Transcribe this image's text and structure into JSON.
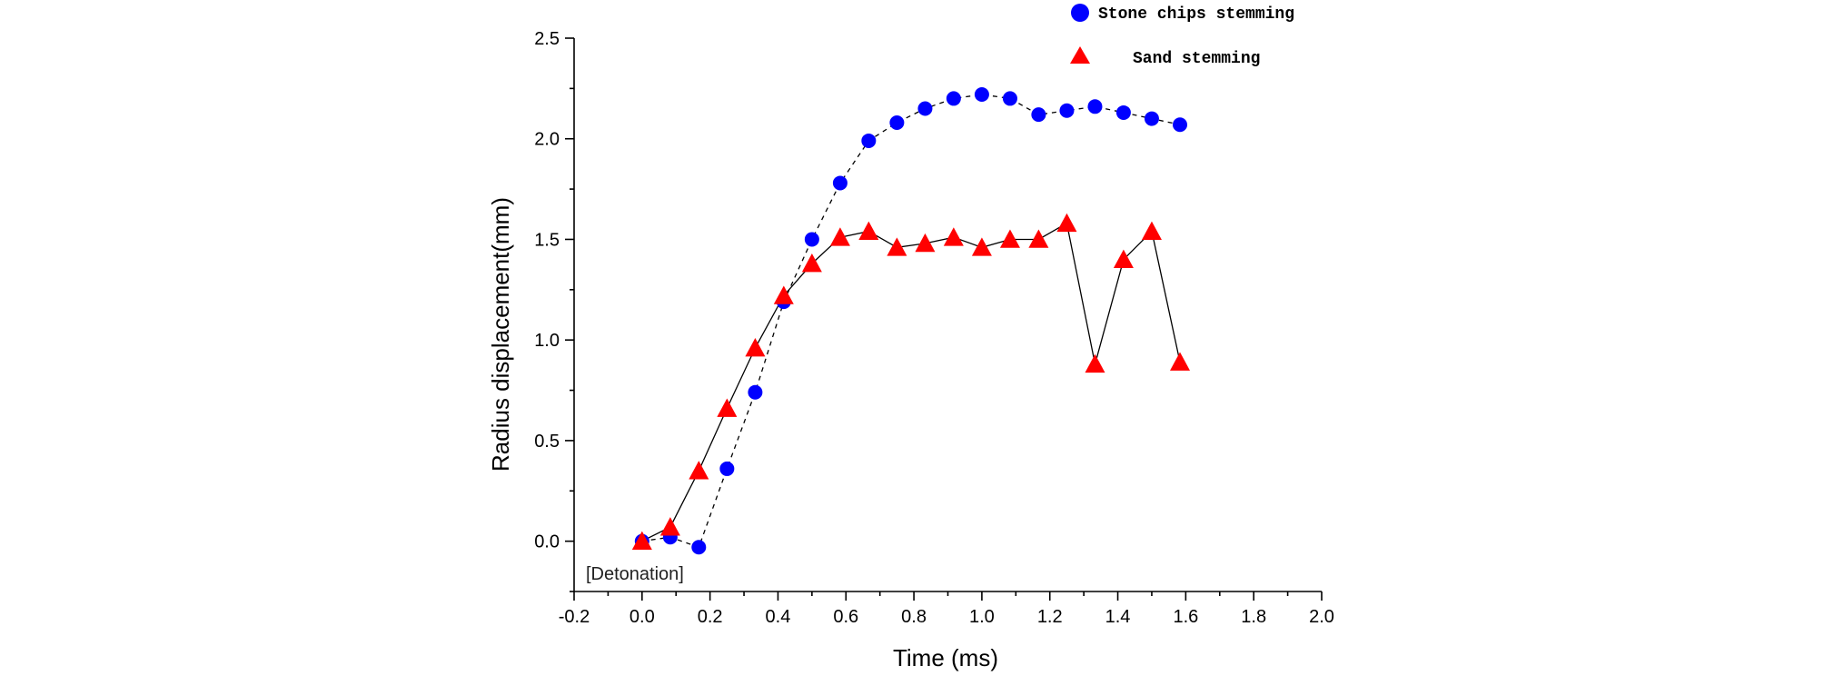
{
  "chart_data": {
    "type": "scatter",
    "xlabel": "Time (ms)",
    "ylabel": "Radius displacement(mm)",
    "xlim": [
      -0.2,
      2.0
    ],
    "ylim": [
      -0.25,
      2.5
    ],
    "x_ticks": [
      -0.2,
      0.0,
      0.2,
      0.4,
      0.6,
      0.8,
      1.0,
      1.2,
      1.4,
      1.6,
      1.8,
      2.0
    ],
    "y_ticks": [
      0.0,
      0.5,
      1.0,
      1.5,
      2.0,
      2.5
    ],
    "x_tick_labels": [
      "-0.2",
      "0.0",
      "0.2",
      "0.4",
      "0.6",
      "0.8",
      "1.0",
      "1.2",
      "1.4",
      "1.6",
      "1.8",
      "2.0"
    ],
    "y_tick_labels": [
      "0.0",
      "0.5",
      "1.0",
      "1.5",
      "2.0",
      "2.5"
    ],
    "annotation": "[Detonation]",
    "legend_position": "top-right",
    "grid": false,
    "series": [
      {
        "name": "Stone chips stemming",
        "marker": "circle",
        "color": "#0000ff",
        "line_style": "dashed",
        "x": [
          0.0,
          0.083,
          0.167,
          0.25,
          0.333,
          0.417,
          0.5,
          0.583,
          0.667,
          0.75,
          0.833,
          0.917,
          1.0,
          1.083,
          1.167,
          1.25,
          1.333,
          1.417,
          1.5,
          1.583
        ],
        "y": [
          0.0,
          0.02,
          -0.03,
          0.36,
          0.74,
          1.19,
          1.5,
          1.78,
          1.99,
          2.08,
          2.15,
          2.2,
          2.22,
          2.2,
          2.12,
          2.14,
          2.16,
          2.13,
          2.1,
          2.07
        ]
      },
      {
        "name": "Sand stemming",
        "marker": "triangle",
        "color": "#ff0000",
        "line_style": "solid",
        "x": [
          0.0,
          0.083,
          0.167,
          0.25,
          0.333,
          0.417,
          0.5,
          0.583,
          0.667,
          0.75,
          0.833,
          0.917,
          1.0,
          1.083,
          1.167,
          1.25,
          1.333,
          1.417,
          1.5,
          1.583
        ],
        "y": [
          0.0,
          0.07,
          0.35,
          0.66,
          0.96,
          1.22,
          1.38,
          1.51,
          1.54,
          1.46,
          1.48,
          1.51,
          1.46,
          1.5,
          1.5,
          1.58,
          0.88,
          1.4,
          1.54,
          0.89
        ]
      }
    ]
  }
}
